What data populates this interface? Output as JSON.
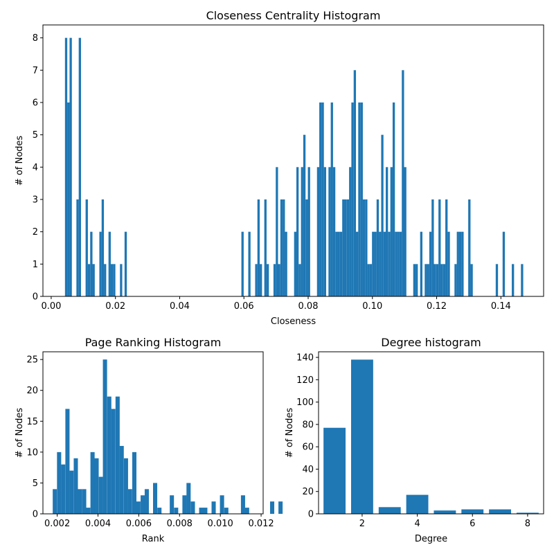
{
  "chart_data": [
    {
      "type": "bar",
      "title": "Closeness Centrality Histogram",
      "xlabel": "Closeness",
      "ylabel": "# of Nodes",
      "xlim": [
        -0.00257,
        0.1533
      ],
      "ylim": [
        0,
        8.4
      ],
      "xticks": [
        0.0,
        0.02,
        0.04,
        0.06,
        0.08,
        0.1,
        0.12,
        0.14
      ],
      "xtick_labels": [
        "0.00",
        "0.02",
        "0.04",
        "0.06",
        "0.08",
        "0.10",
        "0.12",
        "0.14"
      ],
      "yticks": [
        0,
        1,
        2,
        3,
        4,
        5,
        6,
        7,
        8
      ],
      "ytick_labels": [
        "0",
        "1",
        "2",
        "3",
        "4",
        "5",
        "6",
        "7",
        "8"
      ],
      "color": "#1f77b4",
      "bin_width": 0.000713,
      "bins": [
        {
          "x": 0.00429,
          "y": 8
        },
        {
          "x": 0.005,
          "y": 6
        },
        {
          "x": 0.00572,
          "y": 8
        },
        {
          "x": 0.00785,
          "y": 3
        },
        {
          "x": 0.00857,
          "y": 8
        },
        {
          "x": 0.01071,
          "y": 3
        },
        {
          "x": 0.01142,
          "y": 1
        },
        {
          "x": 0.01214,
          "y": 2
        },
        {
          "x": 0.01285,
          "y": 1
        },
        {
          "x": 0.01499,
          "y": 2
        },
        {
          "x": 0.0157,
          "y": 3
        },
        {
          "x": 0.01642,
          "y": 1
        },
        {
          "x": 0.01784,
          "y": 2
        },
        {
          "x": 0.01856,
          "y": 1
        },
        {
          "x": 0.01927,
          "y": 1
        },
        {
          "x": 0.02141,
          "y": 1
        },
        {
          "x": 0.02284,
          "y": 2
        },
        {
          "x": 0.05921,
          "y": 2
        },
        {
          "x": 0.06135,
          "y": 2
        },
        {
          "x": 0.06349,
          "y": 1
        },
        {
          "x": 0.0642,
          "y": 3
        },
        {
          "x": 0.06492,
          "y": 1
        },
        {
          "x": 0.06634,
          "y": 3
        },
        {
          "x": 0.06706,
          "y": 1
        },
        {
          "x": 0.0692,
          "y": 1
        },
        {
          "x": 0.06991,
          "y": 4
        },
        {
          "x": 0.07062,
          "y": 1
        },
        {
          "x": 0.07134,
          "y": 3
        },
        {
          "x": 0.07205,
          "y": 3
        },
        {
          "x": 0.07277,
          "y": 2
        },
        {
          "x": 0.07562,
          "y": 2
        },
        {
          "x": 0.07633,
          "y": 4
        },
        {
          "x": 0.07704,
          "y": 1
        },
        {
          "x": 0.07776,
          "y": 4
        },
        {
          "x": 0.07847,
          "y": 5
        },
        {
          "x": 0.07919,
          "y": 3
        },
        {
          "x": 0.0799,
          "y": 4
        },
        {
          "x": 0.08275,
          "y": 4
        },
        {
          "x": 0.08346,
          "y": 6
        },
        {
          "x": 0.08418,
          "y": 6
        },
        {
          "x": 0.08489,
          "y": 4
        },
        {
          "x": 0.08632,
          "y": 4
        },
        {
          "x": 0.08703,
          "y": 6
        },
        {
          "x": 0.08774,
          "y": 4
        },
        {
          "x": 0.08846,
          "y": 2
        },
        {
          "x": 0.08917,
          "y": 2
        },
        {
          "x": 0.08988,
          "y": 2
        },
        {
          "x": 0.0906,
          "y": 3
        },
        {
          "x": 0.09131,
          "y": 3
        },
        {
          "x": 0.09203,
          "y": 3
        },
        {
          "x": 0.09274,
          "y": 4
        },
        {
          "x": 0.09345,
          "y": 6
        },
        {
          "x": 0.09417,
          "y": 7
        },
        {
          "x": 0.09488,
          "y": 2
        },
        {
          "x": 0.09559,
          "y": 6
        },
        {
          "x": 0.09631,
          "y": 6
        },
        {
          "x": 0.09702,
          "y": 3
        },
        {
          "x": 0.09773,
          "y": 3
        },
        {
          "x": 0.09845,
          "y": 1
        },
        {
          "x": 0.09916,
          "y": 1
        },
        {
          "x": 0.09987,
          "y": 2
        },
        {
          "x": 0.10059,
          "y": 2
        },
        {
          "x": 0.1013,
          "y": 3
        },
        {
          "x": 0.10201,
          "y": 2
        },
        {
          "x": 0.10273,
          "y": 5
        },
        {
          "x": 0.10344,
          "y": 2
        },
        {
          "x": 0.10415,
          "y": 4
        },
        {
          "x": 0.10487,
          "y": 2
        },
        {
          "x": 0.10558,
          "y": 4
        },
        {
          "x": 0.10629,
          "y": 6
        },
        {
          "x": 0.10701,
          "y": 2
        },
        {
          "x": 0.10772,
          "y": 2
        },
        {
          "x": 0.10844,
          "y": 2
        },
        {
          "x": 0.10915,
          "y": 7
        },
        {
          "x": 0.10986,
          "y": 4
        },
        {
          "x": 0.11271,
          "y": 1
        },
        {
          "x": 0.11343,
          "y": 1
        },
        {
          "x": 0.11486,
          "y": 2
        },
        {
          "x": 0.11628,
          "y": 1
        },
        {
          "x": 0.11699,
          "y": 1
        },
        {
          "x": 0.11771,
          "y": 2
        },
        {
          "x": 0.11842,
          "y": 3
        },
        {
          "x": 0.11913,
          "y": 1
        },
        {
          "x": 0.11985,
          "y": 1
        },
        {
          "x": 0.12056,
          "y": 3
        },
        {
          "x": 0.12127,
          "y": 1
        },
        {
          "x": 0.12199,
          "y": 1
        },
        {
          "x": 0.1227,
          "y": 3
        },
        {
          "x": 0.12341,
          "y": 2
        },
        {
          "x": 0.12555,
          "y": 1
        },
        {
          "x": 0.12627,
          "y": 2
        },
        {
          "x": 0.12698,
          "y": 2
        },
        {
          "x": 0.12769,
          "y": 2
        },
        {
          "x": 0.12983,
          "y": 3
        },
        {
          "x": 0.13054,
          "y": 1
        },
        {
          "x": 0.13839,
          "y": 1
        },
        {
          "x": 0.14053,
          "y": 2
        },
        {
          "x": 0.14339,
          "y": 1
        },
        {
          "x": 0.14624,
          "y": 1
        }
      ]
    },
    {
      "type": "bar",
      "title": "Page Ranking Histogram",
      "xlabel": "Rank",
      "ylabel": "# of Nodes",
      "xlim": [
        0.0013,
        0.0121
      ],
      "ylim": [
        0,
        26.25
      ],
      "xticks": [
        0.002,
        0.004,
        0.006,
        0.008,
        0.01,
        0.012
      ],
      "xtick_labels": [
        "0.002",
        "0.004",
        "0.006",
        "0.008",
        "0.010",
        "0.012"
      ],
      "yticks": [
        0,
        5,
        10,
        15,
        20,
        25
      ],
      "ytick_labels": [
        "0",
        "5",
        "10",
        "15",
        "20",
        "25"
      ],
      "color": "#1f77b4",
      "bin_width": 0.000205,
      "bins": [
        {
          "x": 0.00178,
          "y": 4
        },
        {
          "x": 0.00199,
          "y": 10
        },
        {
          "x": 0.00219,
          "y": 8
        },
        {
          "x": 0.0024,
          "y": 17
        },
        {
          "x": 0.0026,
          "y": 7
        },
        {
          "x": 0.00281,
          "y": 9
        },
        {
          "x": 0.00301,
          "y": 4
        },
        {
          "x": 0.00322,
          "y": 4
        },
        {
          "x": 0.00342,
          "y": 1
        },
        {
          "x": 0.00363,
          "y": 10
        },
        {
          "x": 0.00383,
          "y": 9
        },
        {
          "x": 0.00404,
          "y": 6
        },
        {
          "x": 0.00424,
          "y": 25
        },
        {
          "x": 0.00445,
          "y": 19
        },
        {
          "x": 0.00465,
          "y": 17
        },
        {
          "x": 0.00486,
          "y": 19
        },
        {
          "x": 0.00506,
          "y": 11
        },
        {
          "x": 0.00527,
          "y": 9
        },
        {
          "x": 0.00547,
          "y": 4
        },
        {
          "x": 0.00568,
          "y": 10
        },
        {
          "x": 0.00588,
          "y": 2
        },
        {
          "x": 0.00609,
          "y": 3
        },
        {
          "x": 0.00629,
          "y": 4
        },
        {
          "x": 0.0067,
          "y": 5
        },
        {
          "x": 0.00691,
          "y": 1
        },
        {
          "x": 0.00752,
          "y": 3
        },
        {
          "x": 0.00773,
          "y": 1
        },
        {
          "x": 0.00814,
          "y": 3
        },
        {
          "x": 0.00834,
          "y": 5
        },
        {
          "x": 0.00855,
          "y": 2
        },
        {
          "x": 0.00896,
          "y": 1
        },
        {
          "x": 0.00916,
          "y": 1
        },
        {
          "x": 0.00957,
          "y": 2
        },
        {
          "x": 0.00998,
          "y": 3
        },
        {
          "x": 0.01019,
          "y": 1
        },
        {
          "x": 0.01101,
          "y": 3
        },
        {
          "x": 0.01121,
          "y": 1
        },
        {
          "x": 0.01244,
          "y": 2
        },
        {
          "x": 0.01285,
          "y": 2
        }
      ]
    },
    {
      "type": "bar",
      "title": "Degree histogram",
      "xlabel": "Degree",
      "ylabel": "# of Nodes",
      "xlim": [
        0.42,
        8.58
      ],
      "ylim": [
        0,
        145
      ],
      "xticks": [
        2,
        4,
        6,
        8
      ],
      "xtick_labels": [
        "2",
        "4",
        "6",
        "8"
      ],
      "yticks": [
        0,
        20,
        40,
        60,
        80,
        100,
        120,
        140
      ],
      "ytick_labels": [
        "0",
        "20",
        "40",
        "60",
        "80",
        "100",
        "120",
        "140"
      ],
      "color": "#1f77b4",
      "bar_width": 0.8,
      "categories": [
        1,
        2,
        3,
        4,
        5,
        6,
        7,
        8
      ],
      "values": [
        77,
        138,
        6,
        17,
        3,
        4,
        4,
        1
      ]
    }
  ]
}
